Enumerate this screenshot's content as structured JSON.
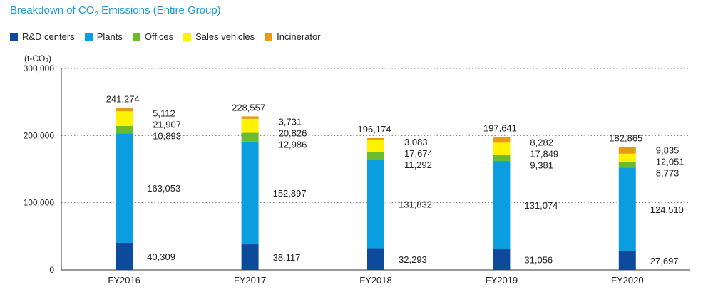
{
  "chart_data": {
    "type": "bar",
    "stacked": true,
    "title_main": "Breakdown of CO",
    "title_sub": "2",
    "title_rest": " Emissions (Entire Group)",
    "ylabel": "(t-CO₂)",
    "ylim": [
      0,
      300000
    ],
    "yticks": [
      0,
      100000,
      200000,
      300000
    ],
    "ytick_labels": [
      "0",
      "100,000",
      "200,000",
      "300,000"
    ],
    "grid": "dotted horizontal",
    "legend_position": "top-left",
    "categories": [
      "FY2016",
      "FY2017",
      "FY2018",
      "FY2019",
      "FY2020"
    ],
    "series": [
      {
        "name": "R&D centers",
        "color": "#0d4a9c",
        "values": [
          40309,
          38117,
          32293,
          31056,
          27697
        ],
        "labels": [
          "40,309",
          "38,117",
          "32,293",
          "31,056",
          "27,697"
        ]
      },
      {
        "name": "Plants",
        "color": "#0a9ee0",
        "values": [
          163053,
          152897,
          131832,
          131074,
          124510
        ],
        "labels": [
          "163,053",
          "152,897",
          "131,832",
          "131,074",
          "124,510"
        ]
      },
      {
        "name": "Offices",
        "color": "#6cba2e",
        "values": [
          10893,
          12986,
          11292,
          9381,
          8773
        ],
        "labels": [
          "10,893",
          "12,986",
          "11,292",
          "9,381",
          "8,773"
        ]
      },
      {
        "name": "Sales vehicles",
        "color": "#fff200",
        "values": [
          21907,
          20826,
          17674,
          17849,
          12051
        ],
        "labels": [
          "21,907",
          "20,826",
          "17,674",
          "17,849",
          "12,051"
        ]
      },
      {
        "name": "Incinerator",
        "color": "#e79c12",
        "values": [
          5112,
          3731,
          3083,
          8282,
          9835
        ],
        "labels": [
          "5,112",
          "3,731",
          "3,083",
          "8,282",
          "9,835"
        ]
      }
    ],
    "totals": [
      241274,
      228557,
      196174,
      197641,
      182865
    ],
    "total_labels": [
      "241,274",
      "228,557",
      "196,174",
      "197,641",
      "182,865"
    ]
  }
}
